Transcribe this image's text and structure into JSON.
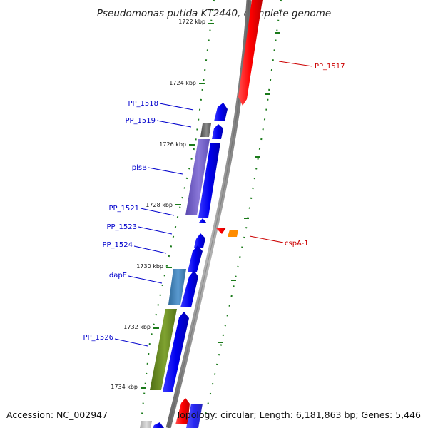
{
  "title": "Pseudomonas putida KT2440, complete genome",
  "footer": {
    "accession": "Accession: NC_002947",
    "topology": "Topology: circular; Length: 6,181,863 bp; Genes: 5,446"
  },
  "colors": {
    "backbone": "#8c8c8c",
    "forward_gene": "#0000ee",
    "reverse_gene": "#ff0000",
    "tick": "#1a7a1a",
    "left_label": "#0000cc",
    "right_label": "#cc0000",
    "cds_purple": "#7b68c8",
    "cds_steelblue": "#4682b4",
    "cds_olive": "#6b8e23",
    "cds_gray": "#707070",
    "cds_orange": "#ff8c00"
  },
  "ticks": [
    {
      "label": "1722 kbp"
    },
    {
      "label": "1724 kbp"
    },
    {
      "label": "1726 kbp"
    },
    {
      "label": "1728 kbp"
    },
    {
      "label": "1730 kbp"
    },
    {
      "label": "1732 kbp"
    },
    {
      "label": "1734 kbp"
    }
  ],
  "left_labels": [
    "PP_1518",
    "PP_1519",
    "plsB",
    "PP_1521",
    "PP_1523",
    "PP_1524",
    "dapE",
    "PP_1526"
  ],
  "right_labels": [
    "PP_1517",
    "cspA-1"
  ]
}
